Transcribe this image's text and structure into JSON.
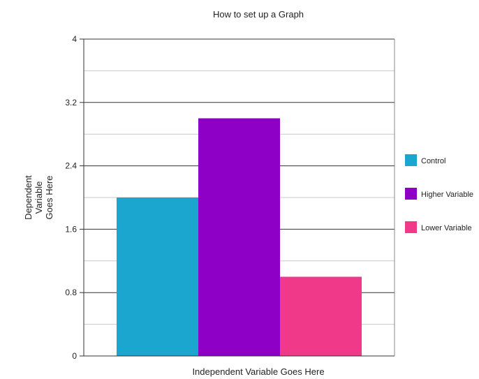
{
  "chart_data": {
    "type": "bar",
    "title": "How to set up a Graph",
    "xlabel": "Independent Variable Goes Here",
    "ylabel_lines": [
      "Dependent",
      "Variable",
      "Goes Here"
    ],
    "ylim": [
      0,
      4
    ],
    "yticks": [
      "0",
      "0.8",
      "1.6",
      "2.4",
      "3.2",
      "4"
    ],
    "grid": true,
    "legend_position": "right",
    "series": [
      {
        "name": "Control",
        "value": 2.0,
        "color": "#1aa6cf"
      },
      {
        "name": "Higher Variable",
        "value": 3.0,
        "color": "#8e00c6"
      },
      {
        "name": "Lower Variable",
        "value": 1.0,
        "color": "#f1398a"
      }
    ]
  }
}
